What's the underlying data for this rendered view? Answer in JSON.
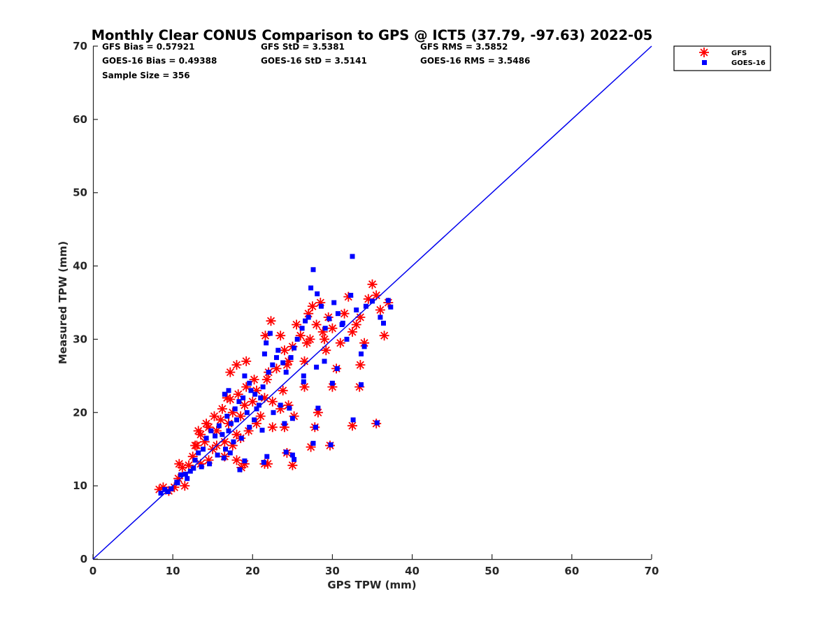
{
  "chart_data": {
    "type": "scatter",
    "title": "Monthly Clear CONUS Comparison to GPS @ ICT5 (37.79, -97.63) 2022-05",
    "xlabel": "GPS TPW (mm)",
    "ylabel": "Measured TPW (mm)",
    "xlim": [
      0,
      70
    ],
    "ylim": [
      0,
      70
    ],
    "xticks": [
      "0",
      "10",
      "20",
      "30",
      "40",
      "50",
      "60",
      "70"
    ],
    "yticks": [
      "0",
      "10",
      "20",
      "30",
      "40",
      "50",
      "60",
      "70"
    ],
    "grid": false,
    "legend_position": "outside-top-right",
    "stats": [
      "GFS Bias = 0.57921",
      "GFS StD = 3.5381",
      "GFS RMS = 3.5852",
      "GOES-16 Bias = 0.49388",
      "GOES-16 StD = 3.5141",
      "GOES-16 RMS = 3.5486",
      "Sample Size = 356"
    ],
    "reference_line": {
      "from": [
        0,
        0
      ],
      "to": [
        70,
        70
      ],
      "color": "#0000ee"
    },
    "series": [
      {
        "name": "GFS",
        "marker": "asterisk",
        "color": "#ff0000",
        "points": [
          [
            8.3,
            9.5
          ],
          [
            8.8,
            9.8
          ],
          [
            9.5,
            9.3
          ],
          [
            10.2,
            9.8
          ],
          [
            10.7,
            11.0
          ],
          [
            11.2,
            12.5
          ],
          [
            11.5,
            10.0
          ],
          [
            10.8,
            13.0
          ],
          [
            12.0,
            12.8
          ],
          [
            12.5,
            14.0
          ],
          [
            13.0,
            15.5
          ],
          [
            13.5,
            17.0
          ],
          [
            14.0,
            16.0
          ],
          [
            14.5,
            18.0
          ],
          [
            15.0,
            15.0
          ],
          [
            15.5,
            17.5
          ],
          [
            16.0,
            19.0
          ],
          [
            16.5,
            16.0
          ],
          [
            17.0,
            18.5
          ],
          [
            17.5,
            20.0
          ],
          [
            18.0,
            17.0
          ],
          [
            18.5,
            19.5
          ],
          [
            19.0,
            21.0
          ],
          [
            16.8,
            22.0
          ],
          [
            17.2,
            25.5
          ],
          [
            18.0,
            26.5
          ],
          [
            19.2,
            27.0
          ],
          [
            20.0,
            21.5
          ],
          [
            20.5,
            23.0
          ],
          [
            21.0,
            19.5
          ],
          [
            21.5,
            22.0
          ],
          [
            21.8,
            24.5
          ],
          [
            22.0,
            25.5
          ],
          [
            21.6,
            30.5
          ],
          [
            22.3,
            32.5
          ],
          [
            23.0,
            26.0
          ],
          [
            23.5,
            30.5
          ],
          [
            24.0,
            28.5
          ],
          [
            24.5,
            27.0
          ],
          [
            25.0,
            29.0
          ],
          [
            25.5,
            32.0
          ],
          [
            26.0,
            30.5
          ],
          [
            26.5,
            27.0
          ],
          [
            27.0,
            33.5
          ],
          [
            27.5,
            34.5
          ],
          [
            28.0,
            32.0
          ],
          [
            28.5,
            35.0
          ],
          [
            29.0,
            30.0
          ],
          [
            29.5,
            33.0
          ],
          [
            30.0,
            31.5
          ],
          [
            31.0,
            29.5
          ],
          [
            31.5,
            33.5
          ],
          [
            32.0,
            35.8
          ],
          [
            32.5,
            31.0
          ],
          [
            33.0,
            32.0
          ],
          [
            33.5,
            33.0
          ],
          [
            34.0,
            29.5
          ],
          [
            34.5,
            35.5
          ],
          [
            35.0,
            37.5
          ],
          [
            35.5,
            36.0
          ],
          [
            36.0,
            34.0
          ],
          [
            36.5,
            30.5
          ],
          [
            37.0,
            35.0
          ],
          [
            33.5,
            26.5
          ],
          [
            33.4,
            23.5
          ],
          [
            35.5,
            18.5
          ],
          [
            32.5,
            18.2
          ],
          [
            29.7,
            15.5
          ],
          [
            27.3,
            15.3
          ],
          [
            27.8,
            18.0
          ],
          [
            28.2,
            20.0
          ],
          [
            25.0,
            12.8
          ],
          [
            24.3,
            14.5
          ],
          [
            21.5,
            13.0
          ],
          [
            21.9,
            13.0
          ],
          [
            18.6,
            12.5
          ],
          [
            18.0,
            13.5
          ],
          [
            19.0,
            13.0
          ],
          [
            22.5,
            18.0
          ],
          [
            23.5,
            20.5
          ],
          [
            24.5,
            21.0
          ],
          [
            24.0,
            18.0
          ],
          [
            25.2,
            19.5
          ],
          [
            20.5,
            18.5
          ],
          [
            19.5,
            17.5
          ],
          [
            18.5,
            16.5
          ],
          [
            17.5,
            15.5
          ],
          [
            16.5,
            14.0
          ],
          [
            15.5,
            15.5
          ],
          [
            14.5,
            13.5
          ],
          [
            13.5,
            13.0
          ],
          [
            12.8,
            15.5
          ],
          [
            13.2,
            17.5
          ],
          [
            14.2,
            18.5
          ],
          [
            15.2,
            19.5
          ],
          [
            16.2,
            20.5
          ],
          [
            17.2,
            21.8
          ],
          [
            18.2,
            22.5
          ],
          [
            19.2,
            23.5
          ],
          [
            20.2,
            24.5
          ],
          [
            30.5,
            26.0
          ],
          [
            30.0,
            23.5
          ],
          [
            26.5,
            23.5
          ],
          [
            23.8,
            23.0
          ],
          [
            22.5,
            21.5
          ],
          [
            24.3,
            26.5
          ],
          [
            26.8,
            29.5
          ],
          [
            29.2,
            28.5
          ],
          [
            28.8,
            31.0
          ],
          [
            27.2,
            30.0
          ]
        ]
      },
      {
        "name": "GOES-16",
        "marker": "square",
        "color": "#0000ff",
        "points": [
          [
            8.5,
            9.0
          ],
          [
            9.0,
            9.5
          ],
          [
            9.8,
            9.6
          ],
          [
            10.5,
            10.5
          ],
          [
            11.0,
            11.5
          ],
          [
            11.8,
            11.0
          ],
          [
            12.2,
            12.0
          ],
          [
            12.8,
            13.5
          ],
          [
            13.2,
            14.5
          ],
          [
            13.8,
            15.0
          ],
          [
            14.2,
            16.5
          ],
          [
            14.8,
            17.5
          ],
          [
            15.3,
            16.8
          ],
          [
            15.8,
            18.2
          ],
          [
            16.2,
            17.0
          ],
          [
            16.8,
            19.5
          ],
          [
            17.3,
            18.5
          ],
          [
            17.8,
            20.5
          ],
          [
            18.3,
            21.5
          ],
          [
            18.8,
            22.0
          ],
          [
            19.3,
            20.0
          ],
          [
            19.8,
            23.0
          ],
          [
            20.3,
            22.5
          ],
          [
            20.8,
            21.0
          ],
          [
            21.3,
            23.5
          ],
          [
            16.5,
            22.5
          ],
          [
            17.0,
            23.0
          ],
          [
            19.0,
            25.0
          ],
          [
            19.6,
            24.0
          ],
          [
            21.5,
            28.0
          ],
          [
            21.7,
            29.5
          ],
          [
            22.2,
            30.8
          ],
          [
            22.5,
            26.5
          ],
          [
            23.2,
            28.5
          ],
          [
            23.8,
            26.8
          ],
          [
            24.2,
            25.5
          ],
          [
            24.8,
            27.5
          ],
          [
            25.2,
            28.8
          ],
          [
            25.6,
            30.0
          ],
          [
            26.2,
            31.5
          ],
          [
            26.6,
            32.5
          ],
          [
            27.0,
            33.0
          ],
          [
            27.3,
            37.0
          ],
          [
            27.6,
            39.5
          ],
          [
            28.1,
            36.2
          ],
          [
            28.6,
            34.5
          ],
          [
            29.1,
            31.5
          ],
          [
            29.6,
            32.8
          ],
          [
            30.2,
            35.0
          ],
          [
            30.7,
            33.5
          ],
          [
            31.2,
            32.0
          ],
          [
            31.8,
            30.0
          ],
          [
            32.3,
            36.0
          ],
          [
            32.5,
            41.3
          ],
          [
            33.0,
            34.0
          ],
          [
            33.6,
            28.0
          ],
          [
            34.0,
            29.0
          ],
          [
            34.2,
            34.5
          ],
          [
            35.0,
            35.2
          ],
          [
            36.0,
            33.0
          ],
          [
            36.4,
            32.2
          ],
          [
            37.0,
            35.3
          ],
          [
            37.3,
            34.4
          ],
          [
            35.6,
            18.6
          ],
          [
            33.6,
            23.8
          ],
          [
            32.6,
            19.0
          ],
          [
            30.6,
            26.0
          ],
          [
            29.8,
            15.6
          ],
          [
            27.6,
            15.8
          ],
          [
            28.2,
            20.6
          ],
          [
            27.9,
            18.0
          ],
          [
            25.2,
            13.6
          ],
          [
            25.0,
            14.2
          ],
          [
            24.2,
            14.6
          ],
          [
            21.8,
            14.0
          ],
          [
            21.4,
            13.2
          ],
          [
            19.0,
            13.4
          ],
          [
            18.4,
            12.2
          ],
          [
            16.4,
            13.8
          ],
          [
            17.2,
            14.5
          ],
          [
            22.6,
            20.0
          ],
          [
            23.5,
            21.0
          ],
          [
            24.6,
            20.6
          ],
          [
            25.0,
            19.2
          ],
          [
            24.0,
            18.5
          ],
          [
            21.2,
            17.6
          ],
          [
            20.2,
            19.0
          ],
          [
            19.6,
            18.0
          ],
          [
            18.6,
            16.5
          ],
          [
            17.6,
            16.0
          ],
          [
            16.6,
            15.0
          ],
          [
            15.6,
            14.2
          ],
          [
            14.6,
            13.0
          ],
          [
            13.6,
            12.6
          ],
          [
            12.6,
            12.4
          ],
          [
            11.6,
            11.6
          ],
          [
            10.6,
            10.4
          ],
          [
            9.4,
            9.2
          ],
          [
            26.4,
            24.2
          ],
          [
            26.4,
            25.0
          ],
          [
            28.0,
            26.2
          ],
          [
            29.0,
            27.0
          ],
          [
            30.0,
            24.0
          ],
          [
            31.3,
            32.2
          ],
          [
            23.0,
            27.5
          ],
          [
            22.0,
            25.5
          ],
          [
            20.5,
            20.5
          ],
          [
            21.0,
            22.0
          ],
          [
            18.0,
            19.0
          ],
          [
            17.0,
            17.5
          ]
        ]
      }
    ]
  }
}
